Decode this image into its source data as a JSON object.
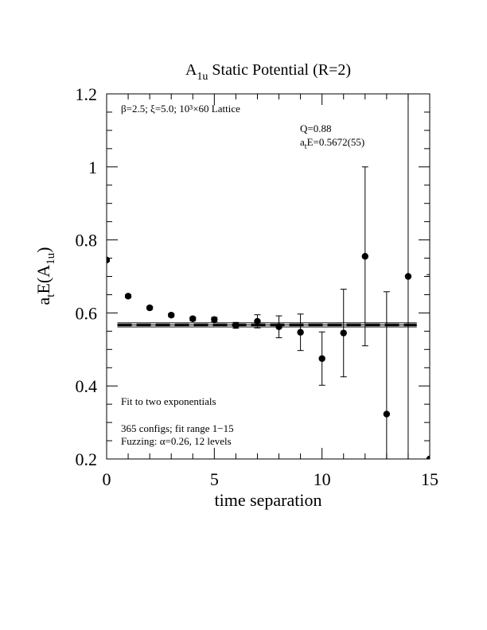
{
  "chart_data": {
    "type": "scatter",
    "title": [
      "A",
      "1u",
      " Static Potential (R=2)"
    ],
    "x_label": "time separation",
    "y_label": [
      "a",
      "t",
      "E(A",
      "1u",
      ")"
    ],
    "annotations": {
      "lattice": "β=2.5; ξ=5.0; 10³×60 Lattice",
      "q": "Q=0.88",
      "fit_value": [
        "a",
        "t",
        "E=0.5672(55)"
      ],
      "method": "Fit to two exponentials",
      "configs": "365 configs; fit range 1−15",
      "fuzzing": "Fuzzing: α=0.26, 12 levels"
    },
    "x": [
      0,
      1,
      2,
      3,
      4,
      5,
      6,
      7,
      8,
      9,
      10,
      11,
      12,
      13,
      14,
      15
    ],
    "values": [
      0.745,
      0.646,
      0.614,
      0.594,
      0.584,
      0.582,
      0.566,
      0.577,
      0.562,
      0.547,
      0.475,
      0.545,
      0.755,
      0.323,
      0.7,
      0.2
    ],
    "errors": [
      0.004,
      0.004,
      0.004,
      0.004,
      0.005,
      0.006,
      0.008,
      0.018,
      0.03,
      0.05,
      0.073,
      0.12,
      0.245,
      0.335,
      0.6,
      0.505
    ],
    "fit": {
      "value": 0.5672,
      "error": 0.0055,
      "x": [
        0.5,
        14.4
      ]
    },
    "color": "#000000",
    "xlim": [
      0,
      15
    ],
    "ylim": [
      0.2,
      1.2
    ],
    "xticks": [
      0,
      5,
      10,
      15
    ],
    "yticks": [
      0.2,
      0.4,
      0.6,
      0.8,
      1,
      1.2
    ],
    "xminorticks": [
      1,
      2,
      3,
      4,
      6,
      7,
      8,
      9,
      11,
      12,
      13,
      14
    ],
    "yminorticks": [
      0.25,
      0.3,
      0.35,
      0.45,
      0.5,
      0.55,
      0.65,
      0.7,
      0.75,
      0.85,
      0.9,
      0.95,
      1.05,
      1.1,
      1.15
    ]
  }
}
